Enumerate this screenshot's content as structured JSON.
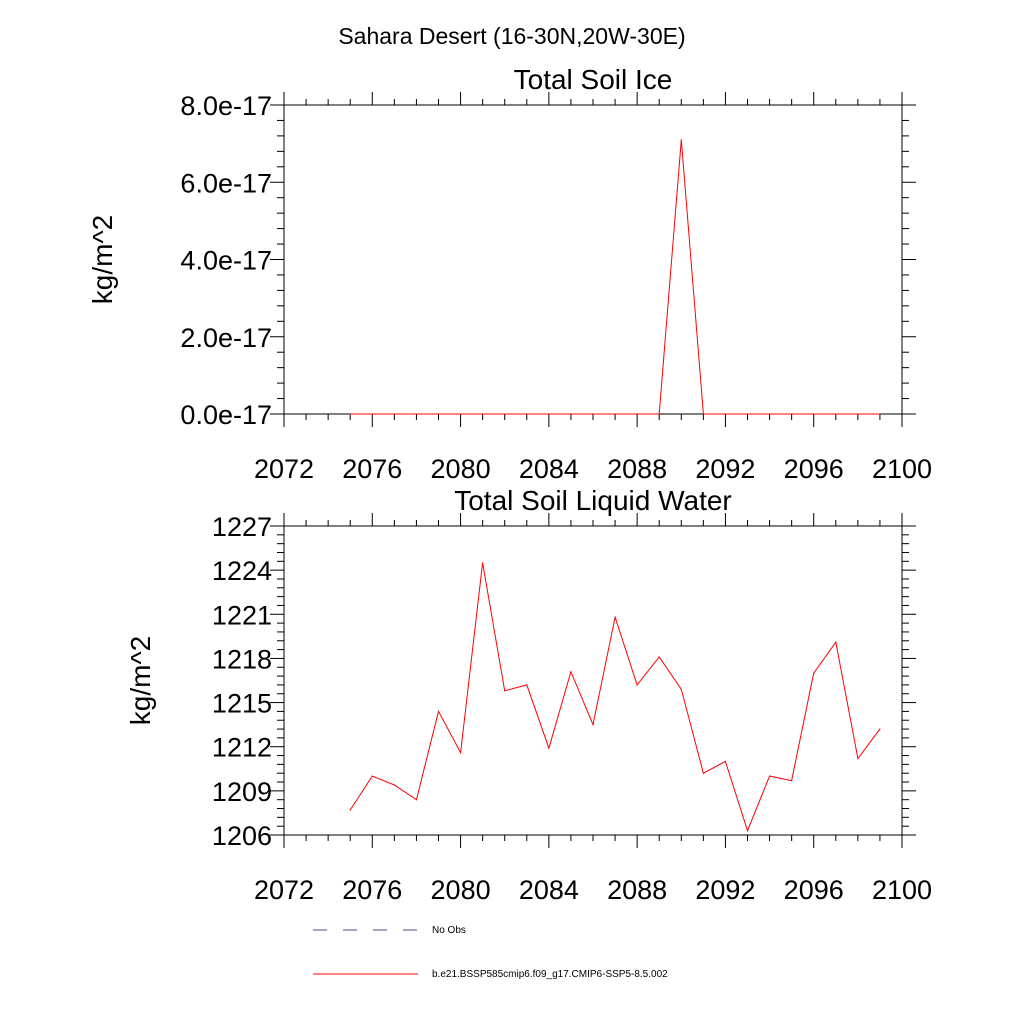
{
  "figure": {
    "title": "Sahara Desert (16-30N,20W-30E)"
  },
  "colors": {
    "model_line": "#ff0000",
    "obs_line": "#4a4a8a",
    "axis": "#000000"
  },
  "legend": {
    "placement": "bottom",
    "entries": [
      {
        "label": "No Obs",
        "style": "dashed"
      },
      {
        "label": "b.e21.BSSP585cmip6.f09_g17.CMIP6-SSP5-8.5.002",
        "style": "solid"
      }
    ]
  },
  "chart_data": [
    {
      "type": "line",
      "title": "Total Soil Ice",
      "xlabel": "",
      "ylabel": "kg/m^2",
      "xlim": [
        2072,
        2100
      ],
      "ylim": [
        0,
        8e-17
      ],
      "xticks": [
        2072,
        2076,
        2080,
        2084,
        2088,
        2092,
        2096,
        2100
      ],
      "xtick_labels": [
        "2072",
        "2076",
        "2080",
        "2084",
        "2088",
        "2092",
        "2096",
        "2100"
      ],
      "yticks": [
        0,
        2e-17,
        4e-17,
        6e-17,
        8e-17
      ],
      "ytick_labels": [
        "0.0e-17",
        "2.0e-17",
        "4.0e-17",
        "6.0e-17",
        "8.0e-17"
      ],
      "grid": false,
      "series": [
        {
          "name": "b.e21.BSSP585cmip6.f09_g17.CMIP6-SSP5-8.5.002",
          "x": [
            2075,
            2076,
            2077,
            2078,
            2079,
            2080,
            2081,
            2082,
            2083,
            2084,
            2085,
            2086,
            2087,
            2088,
            2089,
            2090,
            2091,
            2092,
            2093,
            2094,
            2095,
            2096,
            2097,
            2098,
            2099
          ],
          "y": [
            0,
            0,
            0,
            0,
            0,
            0,
            0,
            0,
            0,
            0,
            0,
            0,
            0,
            0,
            0,
            7.1e-17,
            0,
            0,
            0,
            0,
            0,
            0,
            0,
            0,
            0
          ]
        }
      ]
    },
    {
      "type": "line",
      "title": "Total Soil Liquid Water",
      "xlabel": "",
      "ylabel": "kg/m^2",
      "xlim": [
        2072,
        2100
      ],
      "ylim": [
        1206,
        1227
      ],
      "xticks": [
        2072,
        2076,
        2080,
        2084,
        2088,
        2092,
        2096,
        2100
      ],
      "xtick_labels": [
        "2072",
        "2076",
        "2080",
        "2084",
        "2088",
        "2092",
        "2096",
        "2100"
      ],
      "yticks": [
        1206,
        1209,
        1212,
        1215,
        1218,
        1221,
        1224,
        1227
      ],
      "ytick_labels": [
        "1206",
        "1209",
        "1212",
        "1215",
        "1218",
        "1221",
        "1224",
        "1227"
      ],
      "grid": false,
      "series": [
        {
          "name": "b.e21.BSSP585cmip6.f09_g17.CMIP6-SSP5-8.5.002",
          "x": [
            2075,
            2076,
            2077,
            2078,
            2079,
            2080,
            2081,
            2082,
            2083,
            2084,
            2085,
            2086,
            2087,
            2088,
            2089,
            2090,
            2091,
            2092,
            2093,
            2094,
            2095,
            2096,
            2097,
            2098,
            2099
          ],
          "y": [
            1207.7,
            1210.0,
            1209.4,
            1208.4,
            1214.4,
            1211.6,
            1224.5,
            1215.8,
            1216.2,
            1211.9,
            1217.1,
            1213.5,
            1220.8,
            1216.2,
            1218.1,
            1215.9,
            1210.2,
            1211.0,
            1206.3,
            1210.0,
            1209.7,
            1217.0,
            1219.1,
            1211.2,
            1213.2
          ]
        }
      ]
    }
  ]
}
